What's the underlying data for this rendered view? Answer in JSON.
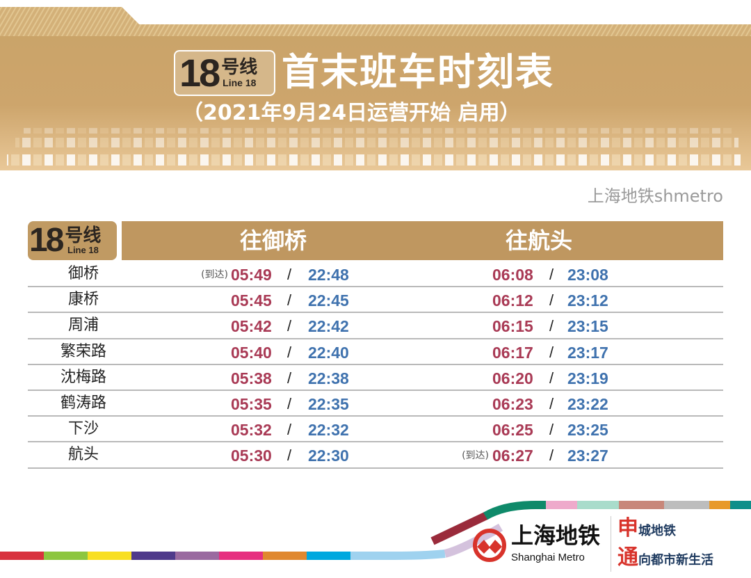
{
  "header": {
    "badge": {
      "number": "18",
      "hao": "号线",
      "line": "Line 18"
    },
    "title": "首末班车时刻表",
    "subtitle": "（2021年9月24日运营开始 启用）"
  },
  "table": {
    "badge": {
      "number": "18",
      "hao": "号线",
      "line": "Line 18"
    },
    "directions": [
      "往御桥",
      "往航头"
    ],
    "arrival_label": "(到达)",
    "separator": "/",
    "rows": [
      {
        "station": "御桥",
        "d1_first": "05:49",
        "d1_last": "22:48",
        "d2_first": "06:08",
        "d2_last": "23:08",
        "d1_arrival": true,
        "d2_arrival": false
      },
      {
        "station": "康桥",
        "d1_first": "05:45",
        "d1_last": "22:45",
        "d2_first": "06:12",
        "d2_last": "23:12"
      },
      {
        "station": "周浦",
        "d1_first": "05:42",
        "d1_last": "22:42",
        "d2_first": "06:15",
        "d2_last": "23:15"
      },
      {
        "station": "繁荣路",
        "d1_first": "05:40",
        "d1_last": "22:40",
        "d2_first": "06:17",
        "d2_last": "23:17"
      },
      {
        "station": "沈梅路",
        "d1_first": "05:38",
        "d1_last": "22:38",
        "d2_first": "06:20",
        "d2_last": "23:19"
      },
      {
        "station": "鹤涛路",
        "d1_first": "05:35",
        "d1_last": "22:35",
        "d2_first": "06:23",
        "d2_last": "23:22"
      },
      {
        "station": "下沙",
        "d1_first": "05:32",
        "d1_last": "22:32",
        "d2_first": "06:25",
        "d2_last": "23:25"
      },
      {
        "station": "航头",
        "d1_first": "05:30",
        "d1_last": "22:30",
        "d2_first": "06:27",
        "d2_last": "23:27",
        "d1_arrival": false,
        "d2_arrival": true
      }
    ]
  },
  "footer": {
    "brand_cn": "上海地铁",
    "brand_en": "Shanghai Metro",
    "slogan1_big": "申",
    "slogan1_rest": "城地铁",
    "slogan2_big": "通",
    "slogan2_rest": "向都市新生活",
    "watermark": "上海地铁shmetro"
  },
  "colors": {
    "gold": "#c9a063",
    "first_train": "#a93a55",
    "last_train": "#3f72ae",
    "stripe": [
      "#d8323e",
      "#8dc63f",
      "#f8df22",
      "#4f3a8b",
      "#9a6aa0",
      "#e62f7f",
      "#e0882f",
      "#00a8df",
      "#9fd2ef",
      "#d4c2dd",
      "#9a2b3b",
      "#0f8a6a",
      "#eeaacb",
      "#a9dccb",
      "#c8877a",
      "#bdbdbd",
      "#e89a2a",
      "#0e8f8a"
    ]
  }
}
